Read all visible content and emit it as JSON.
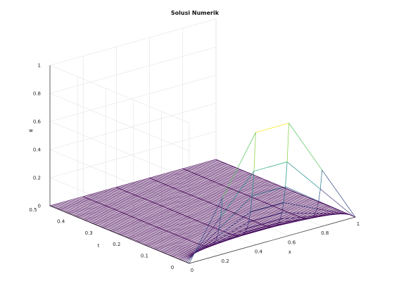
{
  "chart_data": {
    "type": "mesh3d",
    "title": "Solusi Numerik",
    "xlabel": "x",
    "ylabel": "t",
    "zlabel": "w",
    "xlim": [
      0,
      1
    ],
    "ylim": [
      0,
      0.5
    ],
    "zlim": [
      0,
      1
    ],
    "x_ticks": [
      "0",
      "0.2",
      "0.4",
      "0.6",
      "0.8",
      "1"
    ],
    "y_ticks": [
      "0",
      "0.1",
      "0.2",
      "0.3",
      "0.4",
      "0.5"
    ],
    "z_ticks": [
      "0",
      "0.2",
      "0.4",
      "0.6",
      "0.8",
      "1"
    ],
    "x": [
      0,
      0.2,
      0.4,
      0.6,
      0.8,
      1.0
    ],
    "t_steps": 80,
    "t_max": 0.5,
    "w_at_t0": [
      0,
      0.4,
      0.8,
      0.8,
      0.4,
      0
    ],
    "grid": true,
    "colormap": "viridis"
  }
}
